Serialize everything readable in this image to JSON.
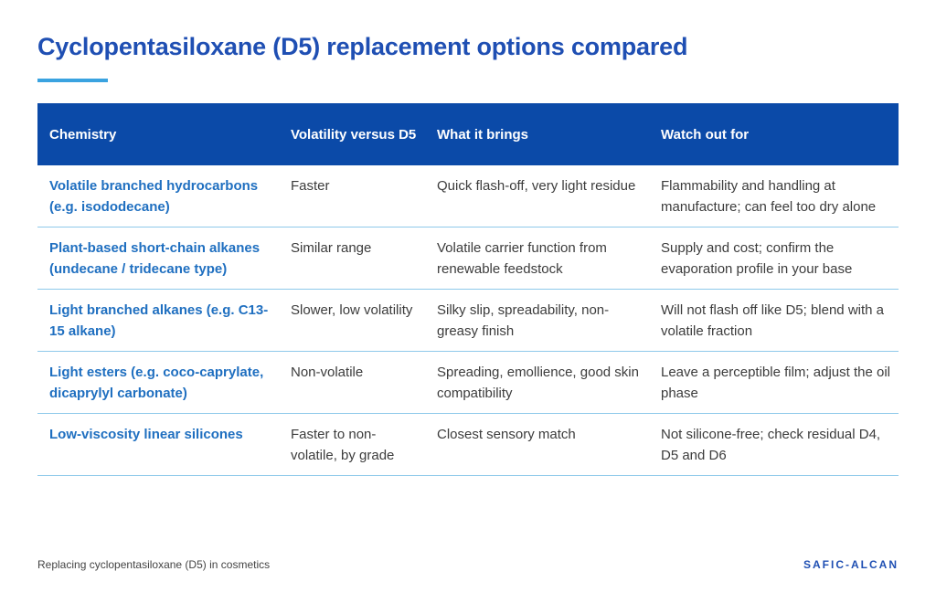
{
  "title": "Cyclopentasiloxane (D5) replacement options compared",
  "table": {
    "headers": [
      "Chemistry",
      "Volatility versus D5",
      "What it brings",
      "Watch out for"
    ],
    "rows": [
      {
        "chemistry": "Volatile branched hydrocarbons (e.g. isododecane)",
        "volatility": "Faster",
        "brings": "Quick flash-off, very light residue",
        "watch": "Flammability and handling at manufacture; can feel too dry alone"
      },
      {
        "chemistry": "Plant-based short-chain alkanes (undecane / tridecane type)",
        "volatility": "Similar range",
        "brings": "Volatile carrier function from renewable feedstock",
        "watch": "Supply and cost; confirm the evaporation profile in your base"
      },
      {
        "chemistry": "Light branched alkanes (e.g. C13-15 alkane)",
        "volatility": "Slower, low volatility",
        "brings": "Silky slip, spreadability, non-greasy finish",
        "watch": "Will not flash off like D5; blend with a volatile fraction"
      },
      {
        "chemistry": "Light esters (e.g. coco-caprylate, dicaprylyl carbonate)",
        "volatility": "Non-volatile",
        "brings": "Spreading, emollience, good skin compatibility",
        "watch": "Leave a perceptible film; adjust the oil phase"
      },
      {
        "chemistry": "Low-viscosity linear silicones",
        "volatility": "Faster to non-volatile, by grade",
        "brings": "Closest sensory match",
        "watch": "Not silicone-free; check residual D4, D5 and D6"
      }
    ]
  },
  "footer": {
    "text": "Replacing cyclopentasiloxane (D5) in cosmetics",
    "brand": "SAFIC-ALCAN"
  },
  "colors": {
    "title": "#1f4fb3",
    "accent_rule": "#3aa3e0",
    "header_bg": "#0b4aa8",
    "chemistry_text": "#1f6fc0",
    "row_divider": "#8ec9ea"
  }
}
